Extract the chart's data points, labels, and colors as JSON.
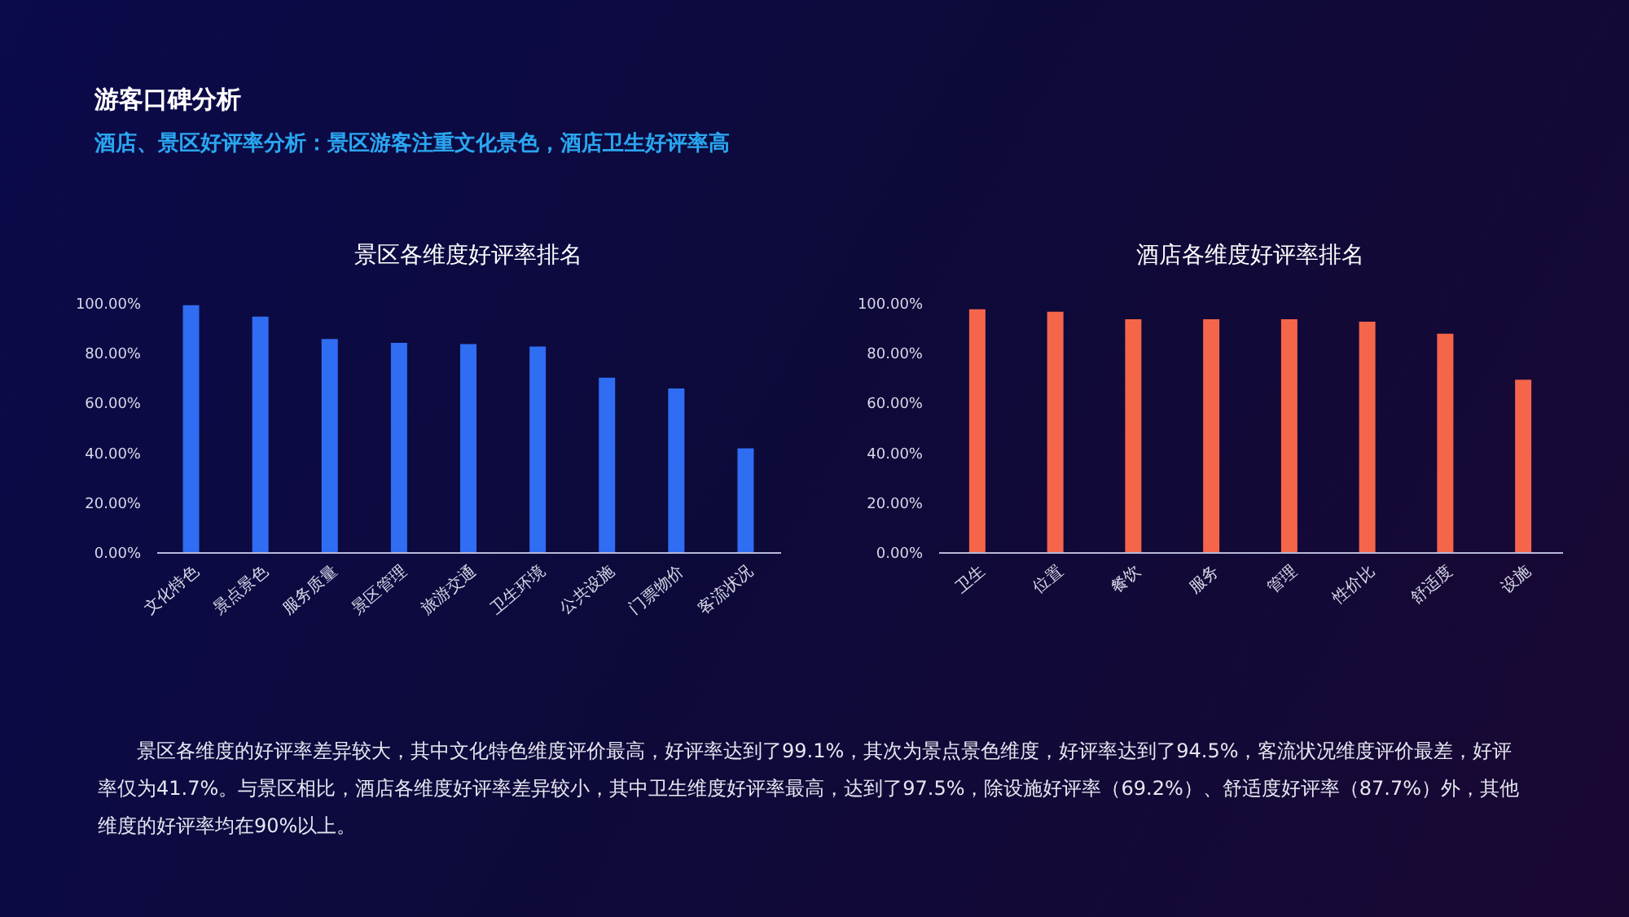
{
  "chart_data": [
    {
      "type": "other",
      "title": "游客口碑分析",
      "subtitle": "酒店、景区好评率分析：景区游客注重文化景色，酒店卫生好评率高"
    },
    {
      "type": "bar",
      "title": "景区各维度好评率排名",
      "categories": [
        "文化特色",
        "景点景色",
        "服务质量",
        "景区管理",
        "旅游交通",
        "卫生环境",
        "公共设施",
        "门票物价",
        "客流状况"
      ],
      "series": [
        {
          "color": "#2f6df2",
          "values": [
            99.1,
            94.5,
            85.5,
            84,
            83.5,
            82.5,
            70,
            65.7,
            41.7
          ]
        }
      ],
      "ylim": [
        0,
        100
      ],
      "yticks": [
        {
          "value": 0,
          "label": "0.00%"
        },
        {
          "value": 20,
          "label": "20.00%"
        },
        {
          "value": 40,
          "label": "40.00%"
        },
        {
          "value": 60,
          "label": "60.00%"
        },
        {
          "value": 80,
          "label": "80.00%"
        },
        {
          "value": 100,
          "label": "100.00%"
        }
      ],
      "grid": false,
      "legend": false
    },
    {
      "type": "bar",
      "title": "酒店各维度好评率排名",
      "categories": [
        "卫生",
        "位置",
        "餐饮",
        "服务",
        "管理",
        "性价比",
        "舒适度",
        "设施"
      ],
      "series": [
        {
          "color": "#f5654a",
          "values": [
            97.5,
            96.5,
            93.5,
            93.5,
            93.5,
            92.5,
            87.7,
            69.2
          ]
        }
      ],
      "ylim": [
        0,
        100
      ],
      "yticks": [
        {
          "value": 0,
          "label": "0.00%"
        },
        {
          "value": 20,
          "label": "20.00%"
        },
        {
          "value": 40,
          "label": "40.00%"
        },
        {
          "value": 60,
          "label": "60.00%"
        },
        {
          "value": 80,
          "label": "80.00%"
        },
        {
          "value": 100,
          "label": "100.00%"
        }
      ],
      "grid": false,
      "legend": false
    },
    {
      "type": "other",
      "annotations": [
        "景区各维度的好评率差异较大，其中文化特色维度评价最高，好评率达到了99.1%，其次为景点景色维度，好评率达到了94.5%，客流状况维度评价最差，好评率仅为41.7%。与景区相比，酒店各维度好评率差异较小，其中卫生维度好评率最高，达到了97.5%，除设施好评率（69.2%）、舒适度好评率（87.7%）外，其他维度的好评率均在90%以上。"
      ]
    }
  ]
}
